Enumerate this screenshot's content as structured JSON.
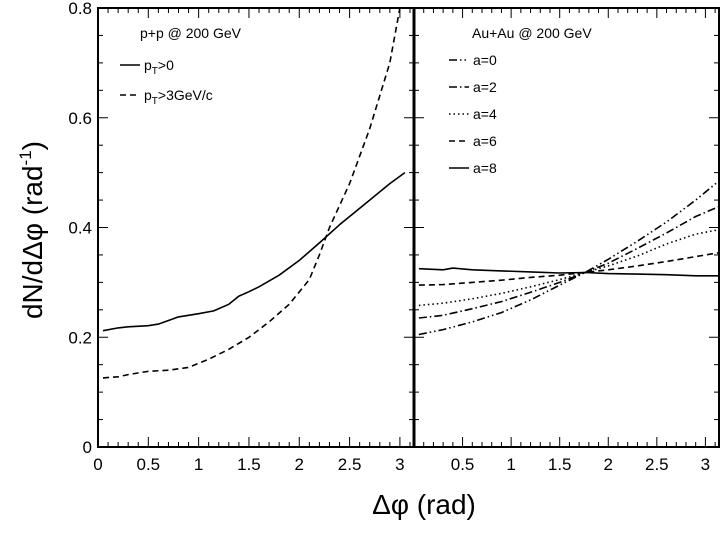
{
  "chart_data": [
    {
      "type": "line",
      "panel": "left",
      "legend_title": "p+p @ 200 GeV",
      "xlim": [
        0,
        3.14
      ],
      "ylim": [
        0,
        0.8
      ],
      "x_ticks": [
        "0",
        "0.5",
        "1",
        "1.5",
        "2",
        "2.5",
        "3"
      ],
      "x_tick_values": [
        0,
        0.5,
        1,
        1.5,
        2,
        2.5,
        3
      ],
      "y_ticks": [
        "0",
        "0.2",
        "0.4",
        "0.6",
        "0.8"
      ],
      "y_tick_values": [
        0,
        0.2,
        0.4,
        0.6,
        0.8
      ],
      "ylabel": "dN/dΔφ (rad",
      "ylabel_sup": "-1",
      "ylabel_end": ")",
      "legend_position": "top-left",
      "series": [
        {
          "name_main": "p",
          "name_sub": "T",
          "name_rest": ">0",
          "dash": "solid",
          "x": [
            0.05,
            0.2,
            0.3,
            0.5,
            0.6,
            0.8,
            1.0,
            1.15,
            1.3,
            1.4,
            1.5,
            1.6,
            1.8,
            2.0,
            2.2,
            2.4,
            2.5,
            2.7,
            2.9,
            3.05
          ],
          "y": [
            0.212,
            0.217,
            0.219,
            0.221,
            0.224,
            0.237,
            0.243,
            0.248,
            0.26,
            0.275,
            0.283,
            0.292,
            0.313,
            0.34,
            0.372,
            0.405,
            0.42,
            0.45,
            0.48,
            0.5
          ]
        },
        {
          "name_main": "p",
          "name_sub": "T",
          "name_rest": ">3GeV/c",
          "dash": "dashed",
          "x": [
            0.05,
            0.2,
            0.3,
            0.5,
            0.7,
            0.9,
            1.1,
            1.3,
            1.5,
            1.7,
            1.9,
            2.1,
            2.2,
            2.3,
            2.5,
            2.7,
            2.9,
            3.0
          ],
          "y": [
            0.126,
            0.128,
            0.132,
            0.138,
            0.14,
            0.145,
            0.16,
            0.178,
            0.2,
            0.228,
            0.26,
            0.305,
            0.35,
            0.4,
            0.48,
            0.58,
            0.7,
            0.8
          ]
        }
      ]
    },
    {
      "type": "line",
      "panel": "right",
      "legend_title": "Au+Au @ 200 GeV",
      "xlim": [
        0,
        3.14
      ],
      "ylim": [
        0,
        0.8
      ],
      "x_ticks": [
        "0.5",
        "1",
        "1.5",
        "2",
        "2.5",
        "3"
      ],
      "x_tick_values": [
        0.5,
        1,
        1.5,
        2,
        2.5,
        3
      ],
      "legend_position": "top-left",
      "series": [
        {
          "name": "a=0",
          "dash": "dash-dot-dot",
          "x": [
            0.05,
            0.3,
            0.6,
            0.9,
            1.2,
            1.5,
            1.76,
            2.0,
            2.3,
            2.6,
            2.9,
            3.14
          ],
          "y": [
            0.205,
            0.214,
            0.228,
            0.245,
            0.268,
            0.295,
            0.318,
            0.342,
            0.375,
            0.41,
            0.45,
            0.485
          ]
        },
        {
          "name": "a=2",
          "dash": "dash-dot",
          "x": [
            0.05,
            0.3,
            0.6,
            0.9,
            1.2,
            1.5,
            1.76,
            2.0,
            2.3,
            2.6,
            2.9,
            3.14
          ],
          "y": [
            0.235,
            0.24,
            0.252,
            0.265,
            0.282,
            0.3,
            0.318,
            0.335,
            0.362,
            0.39,
            0.42,
            0.438
          ]
        },
        {
          "name": "a=4",
          "dash": "dotted",
          "x": [
            0.05,
            0.3,
            0.6,
            0.9,
            1.2,
            1.5,
            1.76,
            2.0,
            2.3,
            2.6,
            2.9,
            3.14
          ],
          "y": [
            0.258,
            0.262,
            0.27,
            0.28,
            0.292,
            0.305,
            0.318,
            0.33,
            0.348,
            0.37,
            0.388,
            0.396
          ]
        },
        {
          "name": "a=6",
          "dash": "dashed",
          "x": [
            0.05,
            0.3,
            0.6,
            0.9,
            1.2,
            1.5,
            1.76,
            2.0,
            2.3,
            2.6,
            2.9,
            3.14
          ],
          "y": [
            0.295,
            0.296,
            0.3,
            0.304,
            0.309,
            0.313,
            0.318,
            0.323,
            0.33,
            0.338,
            0.347,
            0.354
          ]
        },
        {
          "name": "a=8",
          "dash": "solid",
          "x": [
            0.05,
            0.3,
            0.4,
            0.6,
            0.9,
            1.2,
            1.5,
            1.76,
            2.0,
            2.3,
            2.6,
            2.9,
            3.14
          ],
          "y": [
            0.325,
            0.323,
            0.326,
            0.323,
            0.321,
            0.319,
            0.317,
            0.318,
            0.316,
            0.315,
            0.314,
            0.312,
            0.312
          ]
        }
      ]
    }
  ],
  "shared": {
    "xlabel_symbol": "Δφ",
    "xlabel_unit": " (rad)"
  }
}
